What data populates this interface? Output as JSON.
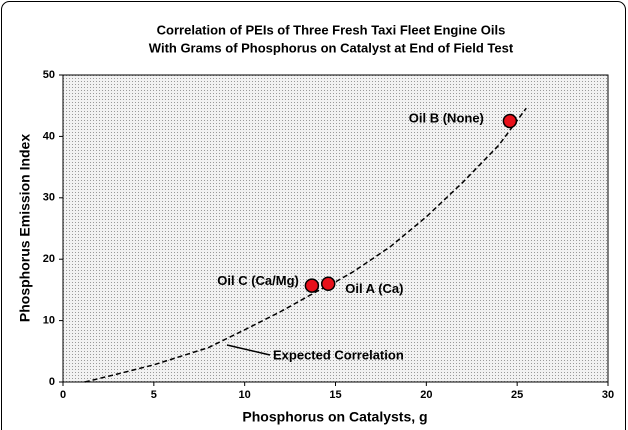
{
  "chart_data": {
    "type": "scatter",
    "title": [
      "Correlation of PEIs of Three Fresh Taxi Fleet Engine Oils",
      "With Grams of Phosphorus on Catalyst at End of Field Test"
    ],
    "xlabel": "Phosphorus on Catalysts, g",
    "ylabel": "Phosphorus Emission Index",
    "xlim": [
      0,
      30
    ],
    "xticks": [
      0,
      5,
      10,
      15,
      20,
      25,
      30
    ],
    "ylim": [
      0,
      50
    ],
    "yticks": [
      0,
      10,
      20,
      30,
      40,
      50
    ],
    "points": {
      "x": [
        24.6,
        14.6,
        13.7
      ],
      "y": [
        42.5,
        16,
        15.7
      ],
      "labels": [
        "Oil B (None)",
        "Oil A (Ca)",
        "Oil C (Ca/Mg)"
      ],
      "color": "#e8101a"
    },
    "curve": {
      "name": "Expected Correlation",
      "x": [
        1.2,
        3,
        5,
        8,
        10,
        12,
        14,
        15,
        16,
        18,
        20,
        22,
        24,
        25.5
      ],
      "y": [
        0,
        1.3,
        2.8,
        5.6,
        8.5,
        11.5,
        14.8,
        16.3,
        18,
        22,
        26.9,
        32.5,
        38.6,
        44.6
      ],
      "color": "#000000"
    }
  }
}
